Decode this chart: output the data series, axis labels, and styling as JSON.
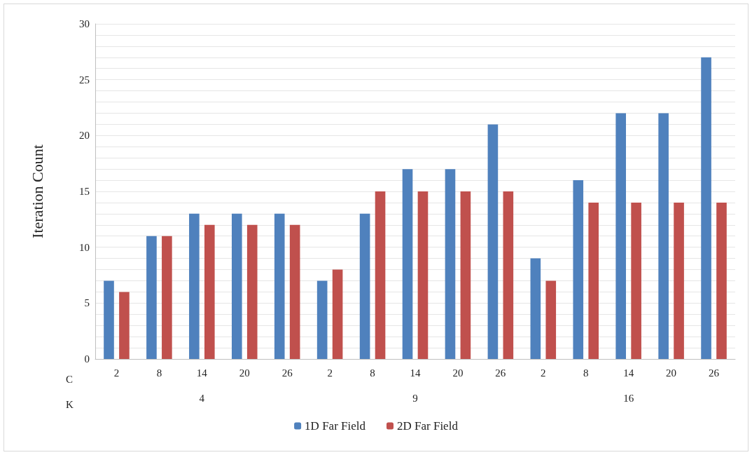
{
  "chart_data": {
    "type": "bar",
    "ylabel": "Iteration Count",
    "categories": [
      "2",
      "8",
      "14",
      "20",
      "26",
      "2",
      "8",
      "14",
      "20",
      "26",
      "2",
      "8",
      "14",
      "20",
      "26"
    ],
    "series": [
      {
        "name": "1D Far Field",
        "color": "#4f81bd",
        "values": [
          7,
          11,
          13,
          13,
          13,
          7,
          13,
          17,
          17,
          21,
          9,
          16,
          22,
          22,
          27
        ]
      },
      {
        "name": "2D Far Field",
        "color": "#c0504d",
        "values": [
          6,
          11,
          12,
          12,
          12,
          8,
          15,
          15,
          15,
          15,
          7,
          14,
          14,
          14,
          14
        ]
      }
    ],
    "ylim": [
      0,
      30
    ],
    "yticks": [
      0,
      {
        "value": 1,
        "label": null
      },
      {
        "value": 2,
        "label": null
      },
      {
        "value": 3,
        "label": null
      },
      {
        "value": 4,
        "label": null
      },
      5,
      {
        "value": 6,
        "label": null
      },
      {
        "value": 7,
        "label": null
      },
      {
        "value": 8,
        "label": null
      },
      {
        "value": 9,
        "label": null
      },
      10,
      {
        "value": 11,
        "label": null
      },
      {
        "value": 12,
        "label": null
      },
      {
        "value": 13,
        "label": null
      },
      {
        "value": 14,
        "label": null
      },
      15,
      {
        "value": 16,
        "label": null
      },
      {
        "value": 17,
        "label": null
      },
      {
        "value": 18,
        "label": null
      },
      {
        "value": 19,
        "label": null
      },
      20,
      {
        "value": 21,
        "label": null
      },
      {
        "value": 22,
        "label": null
      },
      {
        "value": 23,
        "label": null
      },
      {
        "value": 24,
        "label": null
      },
      25,
      {
        "value": 26,
        "label": null
      },
      {
        "value": 27,
        "label": null
      },
      {
        "value": 28,
        "label": null
      },
      {
        "value": 29,
        "label": null
      },
      30
    ],
    "annotations": [
      "C",
      "K",
      "4",
      "9",
      "16"
    ],
    "grid": "y",
    "legend": "bottom"
  }
}
